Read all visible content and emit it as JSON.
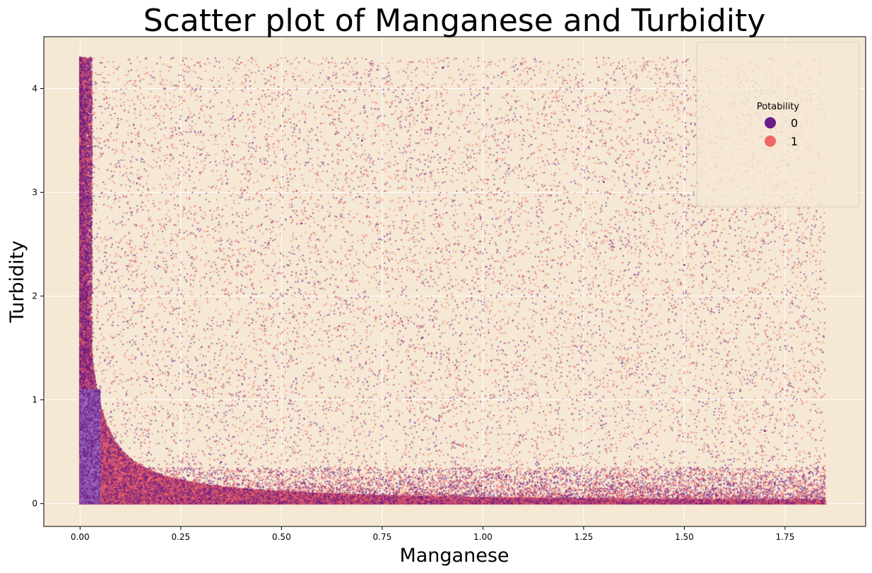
{
  "chart_data": {
    "type": "scatter",
    "title": "Scatter plot of Manganese and Turbidity",
    "xlabel": "Manganese",
    "ylabel": "Turbidity",
    "xlim": [
      -0.09,
      1.95
    ],
    "ylim": [
      -0.22,
      4.5
    ],
    "x_ticks": [
      0.0,
      0.25,
      0.5,
      0.75,
      1.0,
      1.25,
      1.5,
      1.75
    ],
    "x_tick_labels": [
      "0.00",
      "0.25",
      "0.50",
      "0.75",
      "1.00",
      "1.25",
      "1.50",
      "1.75"
    ],
    "y_ticks": [
      0,
      1,
      2,
      3,
      4
    ],
    "y_tick_labels": [
      "0",
      "1",
      "2",
      "3",
      "4"
    ],
    "grid": true,
    "background_color": "#f5e8d4",
    "legend": {
      "title": "Potability",
      "placement": "top-right",
      "entries": [
        {
          "label": "0",
          "color": "#6b1c85"
        },
        {
          "label": "1",
          "color": "#f06565"
        }
      ]
    },
    "series": [
      {
        "name": "0",
        "color": "#6b1c85",
        "points": [
          [
            0.0,
            4.28
          ],
          [
            0.003,
            3.9
          ],
          [
            0.005,
            3.2
          ],
          [
            0.008,
            2.6
          ],
          [
            0.01,
            2.1
          ],
          [
            0.012,
            1.7
          ],
          [
            0.015,
            1.35
          ],
          [
            0.02,
            1.05
          ],
          [
            0.025,
            0.8
          ],
          [
            0.03,
            0.6
          ],
          [
            0.04,
            0.45
          ],
          [
            0.05,
            0.35
          ],
          [
            0.06,
            0.27
          ],
          [
            0.08,
            0.2
          ],
          [
            0.1,
            0.15
          ],
          [
            0.12,
            0.11
          ],
          [
            0.15,
            0.08
          ],
          [
            0.2,
            0.05
          ],
          [
            0.25,
            0.035
          ],
          [
            0.3,
            0.025
          ],
          [
            0.4,
            0.015
          ],
          [
            0.5,
            0.01
          ],
          [
            0.6,
            0.006
          ],
          [
            0.75,
            0.004
          ],
          [
            0.9,
            0.003
          ],
          [
            1.0,
            0.002
          ],
          [
            1.2,
            0.0015
          ],
          [
            1.4,
            0.001
          ],
          [
            1.6,
            0.0008
          ],
          [
            1.85,
            0.0005
          ],
          [
            0.02,
            0.5
          ],
          [
            0.03,
            0.9
          ],
          [
            0.04,
            0.3
          ],
          [
            0.045,
            0.7
          ],
          [
            0.01,
            0.2
          ],
          [
            0.18,
            1.2
          ],
          [
            0.35,
            0.4
          ],
          [
            0.55,
            2.7
          ],
          [
            0.85,
            1.6
          ],
          [
            1.3,
            3.1
          ],
          [
            1.7,
            0.7
          ],
          [
            0.9,
            4.2
          ],
          [
            1.5,
            2.3
          ],
          [
            0.7,
            3.5
          ]
        ]
      },
      {
        "name": "1",
        "color": "#f06565",
        "points": [
          [
            0.002,
            4.25
          ],
          [
            0.006,
            3.4
          ],
          [
            0.01,
            2.8
          ],
          [
            0.015,
            2.2
          ],
          [
            0.02,
            1.8
          ],
          [
            0.03,
            1.3
          ],
          [
            0.05,
            0.9
          ],
          [
            0.07,
            0.65
          ],
          [
            0.1,
            0.45
          ],
          [
            0.13,
            0.33
          ],
          [
            0.17,
            0.24
          ],
          [
            0.22,
            0.17
          ],
          [
            0.28,
            0.12
          ],
          [
            0.35,
            0.08
          ],
          [
            0.45,
            0.05
          ],
          [
            0.55,
            0.035
          ],
          [
            0.7,
            0.02
          ],
          [
            0.85,
            0.013
          ],
          [
            1.0,
            0.009
          ],
          [
            1.2,
            0.006
          ],
          [
            1.4,
            0.004
          ],
          [
            1.6,
            0.003
          ],
          [
            1.85,
            0.002
          ],
          [
            0.08,
            2.5
          ],
          [
            0.16,
            1.7
          ],
          [
            0.3,
            3.8
          ],
          [
            0.48,
            1.1
          ],
          [
            0.66,
            2.2
          ],
          [
            0.95,
            0.55
          ],
          [
            1.1,
            3.6
          ],
          [
            1.35,
            1.4
          ],
          [
            1.55,
            0.3
          ],
          [
            1.75,
            2.9
          ],
          [
            1.82,
            1.2
          ],
          [
            0.4,
            4.25
          ],
          [
            0.6,
            0.25
          ]
        ]
      }
    ],
    "dense_regions": [
      {
        "name": "solid-block",
        "series": "0",
        "x": [
          0.0,
          0.05
        ],
        "y": [
          0.0,
          1.1
        ],
        "description_color": "#8e56b0"
      },
      {
        "name": "left-edge-band",
        "series": "0",
        "x": [
          0.0,
          0.01
        ],
        "y": [
          0.0,
          4.3
        ]
      }
    ],
    "data_extent": {
      "x": [
        0.0,
        1.85
      ],
      "y": [
        0.0,
        4.3
      ]
    }
  }
}
